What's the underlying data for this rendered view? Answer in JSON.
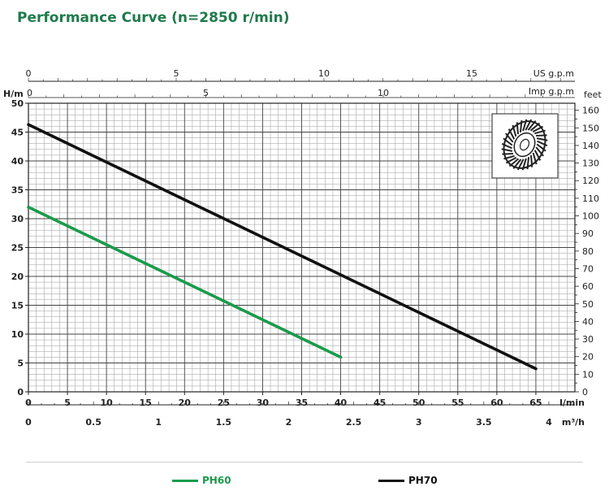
{
  "title": "Performance Curve (n=2850 r/min)",
  "chart_data": {
    "type": "line",
    "x_axis": {
      "label": "l/min",
      "min": 0,
      "max": 70,
      "ticks": [
        0,
        5,
        10,
        15,
        20,
        25,
        30,
        35,
        40,
        45,
        50,
        55,
        60,
        65
      ]
    },
    "x_axis_m3h": {
      "label": "m³/h",
      "min": 0,
      "max": 4.2,
      "ticks": [
        0,
        0.5,
        1,
        1.5,
        2,
        2.5,
        3,
        3.5,
        4
      ]
    },
    "x_axis_usgpm": {
      "label": "US g.p.m",
      "min": 0,
      "max": 18.49,
      "ticks": [
        0,
        5,
        10,
        15
      ]
    },
    "x_axis_impgpm": {
      "label": "Imp g.p.m",
      "min": 0,
      "max": 15.4,
      "ticks": [
        0,
        5,
        10
      ]
    },
    "y_axis": {
      "label": "H/m",
      "min": 0,
      "max": 50,
      "ticks": [
        0,
        5,
        10,
        15,
        20,
        25,
        30,
        35,
        40,
        45,
        50
      ]
    },
    "y_axis_feet": {
      "label": "feet",
      "min": 0,
      "max": 164,
      "ticks": [
        0,
        10,
        20,
        30,
        40,
        50,
        60,
        70,
        80,
        90,
        100,
        110,
        120,
        130,
        140,
        150,
        160
      ]
    },
    "grid": true,
    "legend_position": "bottom",
    "series": [
      {
        "name": "PH60",
        "color": "#1a9b4b",
        "points": [
          [
            0,
            32
          ],
          [
            40,
            6
          ]
        ]
      },
      {
        "name": "PH70",
        "color": "#111111",
        "points": [
          [
            0,
            46.3
          ],
          [
            65,
            4
          ]
        ]
      }
    ]
  },
  "inset_icon": "impeller-icon"
}
